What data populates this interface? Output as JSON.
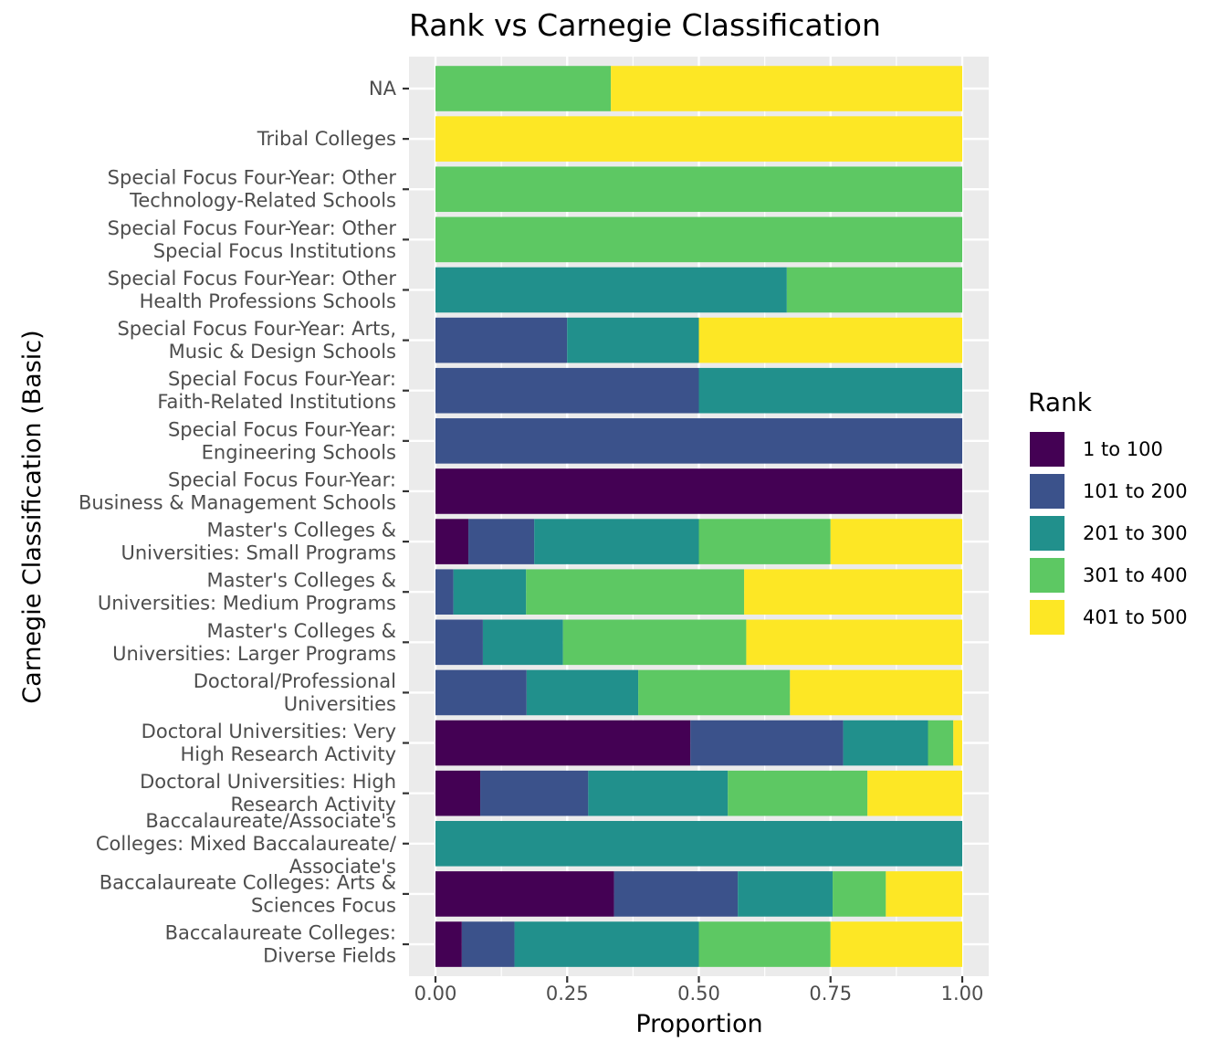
{
  "chart_data": {
    "type": "bar",
    "orientation": "horizontal",
    "stacked": "fill",
    "title": "Rank vs Carnegie Classification",
    "xlabel": "Proportion",
    "ylabel": "Carnegie Classification (Basic)",
    "xlim": [
      0,
      1
    ],
    "x_ticks": [
      "0.00",
      "0.25",
      "0.50",
      "0.75",
      "1.00"
    ],
    "grid": true,
    "legend_position": "right",
    "legend_title": "Rank",
    "categories": [
      [
        "NA"
      ],
      [
        "Tribal Colleges"
      ],
      [
        "Special Focus Four-Year: Other",
        "Technology-Related Schools"
      ],
      [
        "Special Focus Four-Year: Other",
        "Special Focus Institutions"
      ],
      [
        "Special Focus Four-Year: Other",
        "Health Professions Schools"
      ],
      [
        "Special Focus Four-Year: Arts,",
        "Music & Design Schools"
      ],
      [
        "Special Focus Four-Year:",
        "Faith-Related Institutions"
      ],
      [
        "Special Focus Four-Year:",
        "Engineering Schools"
      ],
      [
        "Special Focus Four-Year:",
        "Business & Management Schools"
      ],
      [
        "Master's Colleges &",
        "Universities: Small Programs"
      ],
      [
        "Master's Colleges &",
        "Universities: Medium Programs"
      ],
      [
        "Master's Colleges &",
        "Universities: Larger Programs"
      ],
      [
        "Doctoral/Professional",
        "Universities"
      ],
      [
        "Doctoral Universities: Very",
        "High Research Activity"
      ],
      [
        "Doctoral Universities: High",
        "Research Activity"
      ],
      [
        "Baccalaureate/Associate's",
        "Colleges: Mixed Baccalaureate/",
        "Associate's"
      ],
      [
        "Baccalaureate Colleges: Arts &",
        "Sciences Focus"
      ],
      [
        "Baccalaureate Colleges:",
        "Diverse Fields"
      ]
    ],
    "series": [
      {
        "name": "1 to 100",
        "color": "#440154",
        "values": [
          0,
          0,
          0,
          0,
          0,
          0,
          0,
          0,
          1.0,
          0.0625,
          0,
          0,
          0,
          0.484,
          0.085,
          0,
          0.339,
          0.05
        ]
      },
      {
        "name": "101 to 200",
        "color": "#3B528B",
        "values": [
          0,
          0,
          0,
          0,
          0,
          0.25,
          0.5,
          1.0,
          0,
          0.125,
          0.034,
          0.09,
          0.173,
          0.29,
          0.205,
          0,
          0.235,
          0.1
        ]
      },
      {
        "name": "201 to 300",
        "color": "#21908C",
        "values": [
          0,
          0,
          0,
          0,
          0.667,
          0.25,
          0.5,
          0,
          0,
          0.3125,
          0.138,
          0.152,
          0.212,
          0.161,
          0.265,
          1.0,
          0.18,
          0.35
        ]
      },
      {
        "name": "301 to 400",
        "color": "#5DC863",
        "values": [
          0.333,
          0,
          1.0,
          1.0,
          0.333,
          0,
          0,
          0,
          0,
          0.25,
          0.414,
          0.348,
          0.288,
          0.048,
          0.265,
          0,
          0.101,
          0.25
        ]
      },
      {
        "name": "401 to 500",
        "color": "#FDE725",
        "values": [
          0.667,
          1.0,
          0,
          0,
          0,
          0.5,
          0,
          0,
          0,
          0.25,
          0.414,
          0.41,
          0.327,
          0.017,
          0.18,
          0,
          0.145,
          0.25
        ]
      }
    ]
  }
}
